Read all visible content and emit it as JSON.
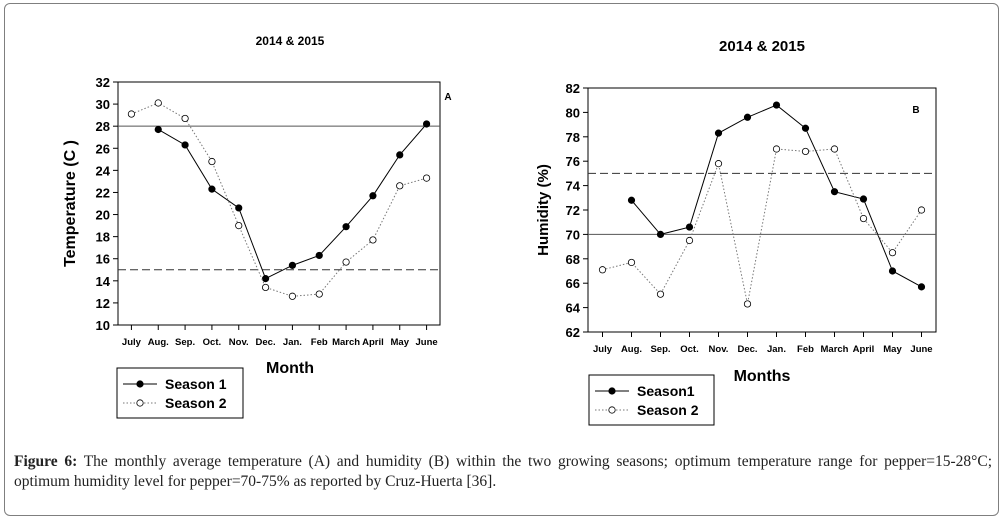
{
  "figure": {
    "caption_label": "Figure 6:",
    "caption_text": " The monthly average temperature (A) and humidity (B) within the two growing seasons; optimum temperature range for pepper=15-28°C; optimum humidity level for pepper=70-75% as reported by Cruz-Huerta [36]."
  },
  "chart_data": [
    {
      "type": "line",
      "panel_label": "A",
      "title": "2014 & 2015",
      "xlabel": "Month",
      "ylabel": "Temperature (C )",
      "categories": [
        "July",
        "Aug.",
        "Sep.",
        "Oct.",
        "Nov.",
        "Dec.",
        "Jan.",
        "Feb",
        "March",
        "April",
        "May",
        "June"
      ],
      "ylim": [
        10,
        32
      ],
      "yticks": [
        10,
        12,
        14,
        16,
        18,
        20,
        22,
        24,
        26,
        28,
        30,
        32
      ],
      "reference_lines": [
        {
          "value": 28,
          "style": "solid"
        },
        {
          "value": 15,
          "style": "dashed"
        }
      ],
      "series": [
        {
          "name": "Season 1",
          "marker": "filled",
          "line": "solid",
          "values": [
            null,
            27.7,
            26.3,
            22.3,
            20.6,
            14.2,
            15.4,
            16.3,
            18.9,
            21.7,
            25.4,
            28.2
          ]
        },
        {
          "name": "Season 2",
          "marker": "open",
          "line": "dotted",
          "values": [
            29.1,
            30.1,
            28.7,
            24.8,
            19.0,
            13.4,
            12.6,
            12.8,
            15.7,
            17.7,
            22.6,
            23.3
          ]
        }
      ],
      "legend_position": "bottom-left"
    },
    {
      "type": "line",
      "panel_label": "B",
      "title": "2014 & 2015",
      "xlabel": "Months",
      "ylabel": "Humidity (%)",
      "categories": [
        "July",
        "Aug.",
        "Sep.",
        "Oct.",
        "Nov.",
        "Dec.",
        "Jan.",
        "Feb",
        "March",
        "April",
        "May",
        "June"
      ],
      "ylim": [
        62,
        82
      ],
      "yticks": [
        62,
        64,
        66,
        68,
        70,
        72,
        74,
        76,
        78,
        80,
        82
      ],
      "reference_lines": [
        {
          "value": 75,
          "style": "dashed"
        },
        {
          "value": 70,
          "style": "solid"
        }
      ],
      "series": [
        {
          "name": "Season1",
          "marker": "filled",
          "line": "solid",
          "values": [
            null,
            72.8,
            70.0,
            70.6,
            78.3,
            79.6,
            80.6,
            78.7,
            73.5,
            72.9,
            67.0,
            65.7
          ]
        },
        {
          "name": "Season 2",
          "marker": "open",
          "line": "dotted",
          "values": [
            67.1,
            67.7,
            65.1,
            69.5,
            75.8,
            64.3,
            77.0,
            76.8,
            77.0,
            71.3,
            68.5,
            72.0
          ]
        }
      ],
      "legend_position": "bottom-left"
    }
  ]
}
